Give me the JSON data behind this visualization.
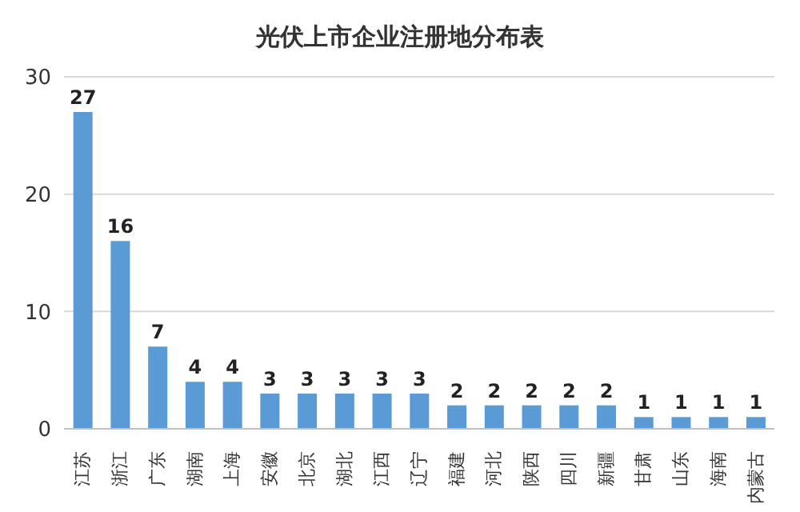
{
  "chart_data": {
    "type": "bar",
    "title": "光伏上市企业注册地分布表",
    "categories": [
      "江苏",
      "浙江",
      "广东",
      "湖南",
      "上海",
      "安徽",
      "北京",
      "湖北",
      "江西",
      "辽宁",
      "福建",
      "河北",
      "陕西",
      "四川",
      "新疆",
      "甘肃",
      "山东",
      "海南",
      "内蒙古"
    ],
    "values": [
      27,
      16,
      7,
      4,
      4,
      3,
      3,
      3,
      3,
      3,
      2,
      2,
      2,
      2,
      2,
      1,
      1,
      1,
      1
    ],
    "color": "#5b9bd5",
    "ylim": [
      0,
      30
    ],
    "yticks": [
      0,
      10,
      20,
      30
    ],
    "grid": "y",
    "data_labels": true
  }
}
